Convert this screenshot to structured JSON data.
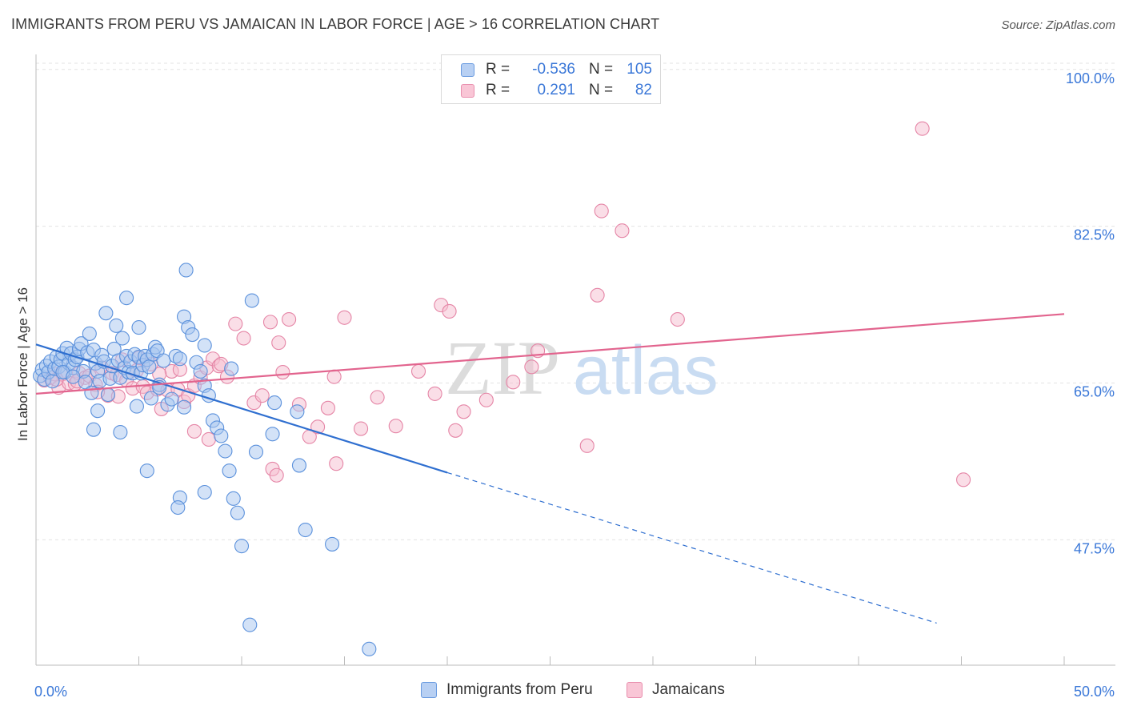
{
  "header": {
    "title": "IMMIGRANTS FROM PERU VS JAMAICAN IN LABOR FORCE | AGE > 16 CORRELATION CHART",
    "source": "Source: ZipAtlas.com"
  },
  "legend": {
    "rows": [
      {
        "r_label": "R =",
        "r_value": "-0.536",
        "n_label": "N =",
        "n_value": "105"
      },
      {
        "r_label": "R =",
        "r_value": "0.291",
        "n_label": "N =",
        "n_value": "82"
      }
    ],
    "bottom": [
      "Immigrants from Peru",
      "Jamaicans"
    ]
  },
  "watermark": {
    "part1": "ZIP",
    "part2": "atlas"
  },
  "colors": {
    "blue_fill": "#a8c6ef",
    "blue_stroke": "#5b91dc",
    "blue_line": "#2f6fd0",
    "pink_fill": "#f6bdd0",
    "pink_stroke": "#e585a6",
    "pink_line": "#e2648e",
    "axis_text": "#3b78d8",
    "grid": "#e3e3e3"
  },
  "chart_data": {
    "type": "scatter",
    "title": "IMMIGRANTS FROM PERU VS JAMAICAN IN LABOR FORCE | AGE > 16 CORRELATION CHART",
    "xlabel": "",
    "ylabel": "In Labor Force | Age > 16",
    "xlim": [
      0,
      50
    ],
    "ylim": [
      33.5,
      101.5
    ],
    "x_tick_labels": [
      "0.0%",
      "50.0%"
    ],
    "y_ticks": [
      47.5,
      65.0,
      82.5,
      100.0
    ],
    "y_tick_labels": [
      "47.5%",
      "65.0%",
      "82.5%",
      "100.0%"
    ],
    "grid": "horizontal dashed",
    "legend_position": "top-center",
    "series": [
      {
        "name": "Immigrants from Peru",
        "color": "#5b91dc",
        "R": -0.536,
        "N": 105,
        "trend": {
          "x": [
            0,
            20
          ],
          "y": [
            69.3,
            55.0
          ],
          "dashed_to": [
            43.8,
            38.2
          ]
        },
        "points": [
          [
            0.2,
            65.8
          ],
          [
            0.3,
            66.5
          ],
          [
            0.4,
            65.4
          ],
          [
            0.5,
            66.9
          ],
          [
            0.6,
            66.2
          ],
          [
            0.7,
            67.4
          ],
          [
            0.8,
            65.2
          ],
          [
            0.9,
            66.6
          ],
          [
            1.0,
            67.9
          ],
          [
            1.1,
            66.8
          ],
          [
            1.2,
            67.6
          ],
          [
            1.3,
            68.3
          ],
          [
            1.4,
            66.2
          ],
          [
            1.5,
            68.9
          ],
          [
            1.6,
            67.2
          ],
          [
            1.7,
            68.3
          ],
          [
            1.8,
            66.7
          ],
          [
            1.9,
            67.6
          ],
          [
            2.0,
            67.9
          ],
          [
            2.1,
            68.8
          ],
          [
            2.2,
            69.4
          ],
          [
            2.3,
            66.3
          ],
          [
            2.4,
            65.1
          ],
          [
            2.5,
            68.4
          ],
          [
            2.6,
            70.5
          ],
          [
            2.7,
            63.9
          ],
          [
            2.8,
            68.7
          ],
          [
            2.9,
            67.2
          ],
          [
            3.0,
            66.3
          ],
          [
            3.1,
            65.2
          ],
          [
            3.2,
            68.1
          ],
          [
            3.3,
            67.4
          ],
          [
            3.4,
            72.8
          ],
          [
            3.5,
            63.7
          ],
          [
            3.6,
            65.5
          ],
          [
            3.7,
            66.9
          ],
          [
            3.8,
            68.8
          ],
          [
            3.9,
            71.4
          ],
          [
            4.0,
            67.5
          ],
          [
            4.1,
            65.6
          ],
          [
            4.2,
            70.0
          ],
          [
            4.3,
            66.7
          ],
          [
            4.4,
            68.0
          ],
          [
            4.5,
            66.2
          ],
          [
            4.6,
            67.4
          ],
          [
            4.7,
            66.1
          ],
          [
            4.8,
            68.2
          ],
          [
            4.9,
            62.4
          ],
          [
            5.0,
            67.9
          ],
          [
            5.1,
            66.1
          ],
          [
            5.2,
            67.0
          ],
          [
            5.3,
            68.0
          ],
          [
            5.4,
            67.6
          ],
          [
            5.5,
            66.8
          ],
          [
            5.6,
            63.3
          ],
          [
            5.7,
            68.2
          ],
          [
            5.8,
            69.0
          ],
          [
            5.9,
            68.6
          ],
          [
            6.0,
            64.8
          ],
          [
            6.2,
            67.5
          ],
          [
            6.4,
            62.6
          ],
          [
            6.6,
            63.2
          ],
          [
            6.8,
            68.0
          ],
          [
            7.0,
            67.7
          ],
          [
            7.2,
            72.4
          ],
          [
            7.4,
            71.2
          ],
          [
            7.6,
            70.4
          ],
          [
            7.8,
            67.3
          ],
          [
            8.0,
            66.3
          ],
          [
            8.2,
            64.7
          ],
          [
            8.4,
            63.6
          ],
          [
            8.6,
            60.8
          ],
          [
            8.8,
            60.0
          ],
          [
            9.0,
            59.1
          ],
          [
            9.2,
            57.4
          ],
          [
            9.4,
            55.2
          ],
          [
            9.6,
            52.1
          ],
          [
            9.8,
            50.5
          ],
          [
            10.0,
            46.8
          ],
          [
            10.4,
            38.0
          ],
          [
            10.5,
            74.2
          ],
          [
            4.4,
            74.5
          ],
          [
            7.3,
            77.6
          ],
          [
            5.0,
            71.2
          ],
          [
            8.2,
            69.2
          ],
          [
            6.0,
            64.5
          ],
          [
            3.0,
            61.9
          ],
          [
            4.1,
            59.5
          ],
          [
            2.8,
            59.8
          ],
          [
            5.4,
            55.2
          ],
          [
            7.0,
            52.2
          ],
          [
            6.9,
            51.1
          ],
          [
            8.2,
            52.8
          ],
          [
            10.7,
            57.3
          ],
          [
            12.8,
            55.8
          ],
          [
            13.1,
            48.6
          ],
          [
            14.4,
            47.0
          ],
          [
            16.2,
            35.3
          ],
          [
            11.5,
            59.3
          ],
          [
            11.6,
            62.8
          ],
          [
            12.7,
            61.8
          ],
          [
            9.5,
            66.6
          ],
          [
            7.2,
            62.3
          ],
          [
            1.3,
            66.2
          ],
          [
            1.8,
            65.7
          ]
        ]
      },
      {
        "name": "Jamaicans",
        "color": "#e585a6",
        "R": 0.291,
        "N": 82,
        "trend": {
          "x": [
            0,
            50
          ],
          "y": [
            63.8,
            72.7
          ]
        },
        "points": [
          [
            0.4,
            65.3
          ],
          [
            0.7,
            65.6
          ],
          [
            0.9,
            66.0
          ],
          [
            1.1,
            64.5
          ],
          [
            1.3,
            66.0
          ],
          [
            1.6,
            65.0
          ],
          [
            1.9,
            64.9
          ],
          [
            2.1,
            66.1
          ],
          [
            2.4,
            65.6
          ],
          [
            2.6,
            65.8
          ],
          [
            2.9,
            64.8
          ],
          [
            3.2,
            66.7
          ],
          [
            3.5,
            63.6
          ],
          [
            3.7,
            66.1
          ],
          [
            3.9,
            65.9
          ],
          [
            4.2,
            67.6
          ],
          [
            4.4,
            65.3
          ],
          [
            4.7,
            64.4
          ],
          [
            4.9,
            66.4
          ],
          [
            5.2,
            64.6
          ],
          [
            5.4,
            63.9
          ],
          [
            5.6,
            67.1
          ],
          [
            5.9,
            64.3
          ],
          [
            6.1,
            62.1
          ],
          [
            6.4,
            64.2
          ],
          [
            6.6,
            66.3
          ],
          [
            6.9,
            64.3
          ],
          [
            7.2,
            62.9
          ],
          [
            7.4,
            63.6
          ],
          [
            7.7,
            64.7
          ],
          [
            8.0,
            65.6
          ],
          [
            8.3,
            66.7
          ],
          [
            8.6,
            67.7
          ],
          [
            8.9,
            66.9
          ],
          [
            9.3,
            65.7
          ],
          [
            9.7,
            71.6
          ],
          [
            10.1,
            70.0
          ],
          [
            10.6,
            62.8
          ],
          [
            11.0,
            63.6
          ],
          [
            11.4,
            71.8
          ],
          [
            11.8,
            69.5
          ],
          [
            12.3,
            72.1
          ],
          [
            12.8,
            62.6
          ],
          [
            13.3,
            59.0
          ],
          [
            13.7,
            60.1
          ],
          [
            14.2,
            62.2
          ],
          [
            14.5,
            65.7
          ],
          [
            15.0,
            72.3
          ],
          [
            15.8,
            59.9
          ],
          [
            16.6,
            63.4
          ],
          [
            17.5,
            60.2
          ],
          [
            18.6,
            66.3
          ],
          [
            19.4,
            63.8
          ],
          [
            19.7,
            73.7
          ],
          [
            20.1,
            73.0
          ],
          [
            20.4,
            59.7
          ],
          [
            20.8,
            61.8
          ],
          [
            21.9,
            63.1
          ],
          [
            23.2,
            65.1
          ],
          [
            24.1,
            66.8
          ],
          [
            24.4,
            68.6
          ],
          [
            26.8,
            58.0
          ],
          [
            27.3,
            74.8
          ],
          [
            27.5,
            84.2
          ],
          [
            28.5,
            82.0
          ],
          [
            31.2,
            72.1
          ],
          [
            43.1,
            93.4
          ],
          [
            45.1,
            54.2
          ],
          [
            7.7,
            59.6
          ],
          [
            8.4,
            58.7
          ],
          [
            11.5,
            55.4
          ],
          [
            11.7,
            54.7
          ],
          [
            14.6,
            56.0
          ],
          [
            6.0,
            66.0
          ],
          [
            7.0,
            66.5
          ],
          [
            3.0,
            64.0
          ],
          [
            4.0,
            63.5
          ],
          [
            5.0,
            67.8
          ],
          [
            9.0,
            67.1
          ],
          [
            12.0,
            66.2
          ],
          [
            2.0,
            65.2
          ],
          [
            1.0,
            65.4
          ]
        ]
      }
    ]
  }
}
